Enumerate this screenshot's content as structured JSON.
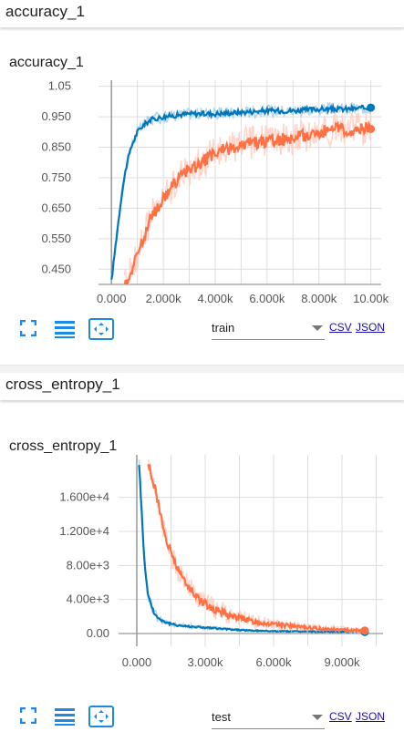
{
  "sections": [
    {
      "header": "accuracy_1",
      "card_title": "accuracy_1",
      "dropdown_value": "train",
      "csv_label": "CSV",
      "json_label": "JSON"
    },
    {
      "header": "cross_entropy_1",
      "card_title": "cross_entropy_1",
      "dropdown_value": "test",
      "csv_label": "CSV",
      "json_label": "JSON"
    }
  ],
  "colors": {
    "series_blue": "#0077bb",
    "series_orange": "#ff7043",
    "orange_shadow": "#ffcbbd",
    "blue_shadow": "#9ccbe8",
    "grid": "#dddddd",
    "axis": "#999999",
    "icon_blue": "#1e88e5"
  },
  "icons": [
    "fit-domain-icon",
    "toggle-log-scale-icon",
    "expand-chart-icon"
  ],
  "chart_data": [
    {
      "type": "line",
      "title": "accuracy_1",
      "xlabel": "",
      "ylabel": "",
      "xlim": [
        -500,
        10400
      ],
      "ylim": [
        0.4,
        1.07
      ],
      "x_ticks": [
        0,
        2000,
        4000,
        6000,
        8000,
        10000
      ],
      "x_tick_labels": [
        "0.000",
        "2.000k",
        "4.000k",
        "6.000k",
        "8.000k",
        "10.00k"
      ],
      "y_ticks": [
        0.45,
        0.55,
        0.65,
        0.75,
        0.85,
        0.95,
        1.05
      ],
      "y_tick_labels": [
        "0.450",
        "0.550",
        "0.650",
        "0.750",
        "0.850",
        "0.950",
        "1.05"
      ],
      "grid": true,
      "series": [
        {
          "color": "blue",
          "x": [
            0,
            200,
            400,
            600,
            800,
            1000,
            1200,
            1500,
            2000,
            2500,
            3000,
            4000,
            5000,
            6000,
            7000,
            8000,
            9000,
            10000
          ],
          "y": [
            0.41,
            0.56,
            0.7,
            0.8,
            0.86,
            0.9,
            0.92,
            0.94,
            0.95,
            0.955,
            0.96,
            0.96,
            0.965,
            0.97,
            0.97,
            0.975,
            0.975,
            0.98
          ]
        },
        {
          "color": "orange",
          "x": [
            500,
            800,
            1000,
            1300,
            1600,
            2000,
            2500,
            3000,
            3500,
            4000,
            5000,
            6000,
            7000,
            8000,
            9000,
            10000
          ],
          "y": [
            0.4,
            0.45,
            0.5,
            0.57,
            0.63,
            0.68,
            0.74,
            0.78,
            0.8,
            0.83,
            0.86,
            0.87,
            0.88,
            0.9,
            0.91,
            0.91
          ]
        }
      ]
    },
    {
      "type": "line",
      "title": "cross_entropy_1",
      "xlabel": "",
      "ylabel": "",
      "xlim": [
        -800,
        10800
      ],
      "ylim": [
        -1500,
        21000
      ],
      "x_ticks": [
        0,
        3000,
        6000,
        9000
      ],
      "x_tick_labels": [
        "0.000",
        "3.000k",
        "6.000k",
        "9.000k"
      ],
      "y_ticks": [
        0,
        4000,
        8000,
        12000,
        16000
      ],
      "y_tick_labels": [
        "0.00",
        "4.00e+3",
        "8.00e+3",
        "1.200e+4",
        "1.600e+4"
      ],
      "grid": true,
      "series": [
        {
          "color": "blue",
          "x": [
            100,
            200,
            300,
            400,
            500,
            700,
            900,
            1200,
            1500,
            2000,
            3000,
            4000,
            5000,
            6000,
            8000,
            10000
          ],
          "y": [
            20000,
            15000,
            10000,
            6500,
            4500,
            2800,
            1900,
            1400,
            1100,
            900,
            700,
            500,
            350,
            280,
            220,
            180
          ]
        },
        {
          "color": "orange",
          "x": [
            500,
            800,
            1000,
            1200,
            1500,
            1800,
            2200,
            2600,
            3000,
            3500,
            4000,
            5000,
            6000,
            7000,
            8000,
            9000,
            10000
          ],
          "y": [
            20000,
            17000,
            14500,
            12000,
            9500,
            7500,
            5800,
            4500,
            3500,
            2800,
            2200,
            1500,
            1100,
            800,
            600,
            450,
            350
          ]
        }
      ]
    }
  ]
}
